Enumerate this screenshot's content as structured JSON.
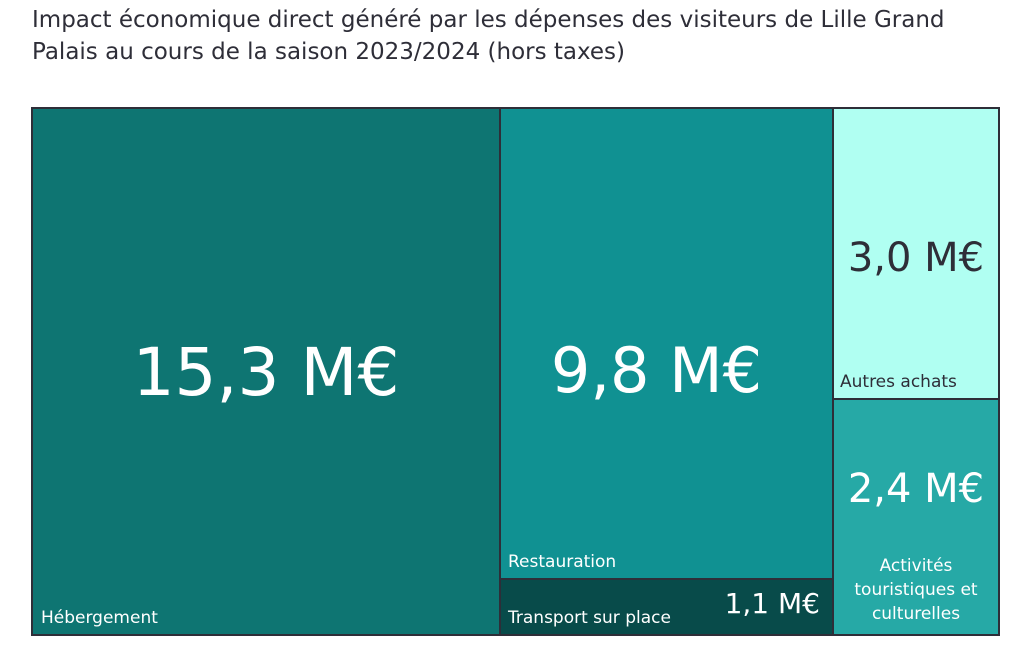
{
  "title": "Impact économique direct généré par les dépenses des visiteurs de Lille Grand Palais au cours de la saison 2023/2024 (hors taxes)",
  "chart_data": {
    "type": "treemap",
    "unit": "M€",
    "items": [
      {
        "label": "Hébergement",
        "value": 15.3,
        "value_label": "15,3 M€",
        "color": "#0e7572",
        "text_color": "#ffffff"
      },
      {
        "label": "Restauration",
        "value": 9.8,
        "value_label": "9,8 M€",
        "color": "#109192",
        "text_color": "#ffffff"
      },
      {
        "label": "Transport sur place",
        "value": 1.1,
        "value_label": "1,1 M€",
        "color": "#084b4a",
        "text_color": "#ffffff"
      },
      {
        "label": "Autres achats",
        "value": 3.0,
        "value_label": "3,0 M€",
        "color": "#b0fff2",
        "text_color": "#2e2e38"
      },
      {
        "label": "Activités touristiques et culturelles",
        "value": 2.4,
        "value_label": "2,4 M€",
        "color": "#26a9a6",
        "text_color": "#ffffff"
      }
    ]
  }
}
